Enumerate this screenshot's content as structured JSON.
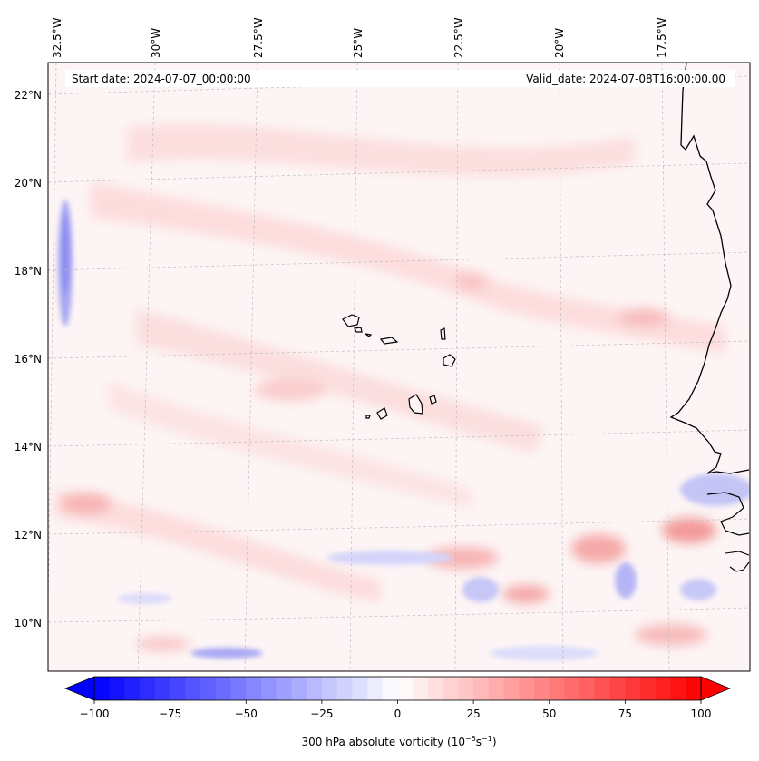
{
  "map": {
    "start_label": "Start date: 2024-07-07_00:00:00",
    "valid_label": "Valid_date: 2024-07-08T16:00:00.00",
    "lon_labels": [
      "32.5°W",
      "30°W",
      "27.5°W",
      "25°W",
      "22.5°W",
      "20°W",
      "17.5°W"
    ],
    "lat_labels": [
      "22°N",
      "20°N",
      "18°N",
      "16°N",
      "14°N",
      "12°N",
      "10°N"
    ],
    "field_name": "300 hPa absolute vorticity"
  },
  "colorbar": {
    "label": "300 hPa absolute vorticity (10",
    "label_exp1": "−5",
    "label_mid": "s",
    "label_exp2": "−1",
    "label_close": ")",
    "ticks": [
      "−100",
      "−75",
      "−50",
      "−25",
      "0",
      "25",
      "50",
      "75",
      "100"
    ],
    "min": -100,
    "max": 100,
    "neg_color": "#0000ff",
    "pos_color": "#ff0000"
  }
}
